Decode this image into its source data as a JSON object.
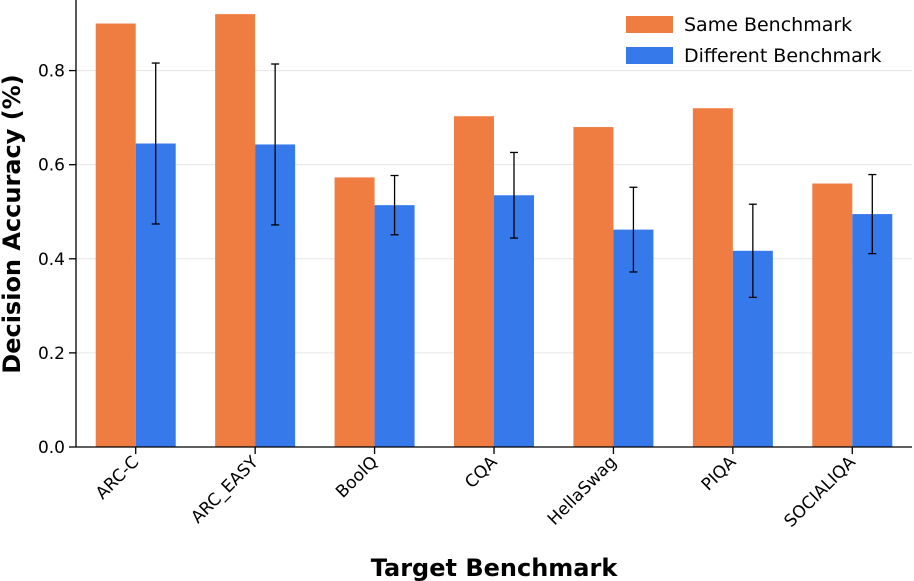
{
  "chart_data": {
    "type": "bar",
    "title": "",
    "xlabel": "Target Benchmark",
    "ylabel": "Decision Accuracy (%)",
    "ylim": [
      0,
      0.95
    ],
    "yticks": [
      0.0,
      0.2,
      0.4,
      0.6,
      0.8
    ],
    "ytick_labels": [
      "0.0",
      "0.2",
      "0.4",
      "0.6",
      "0.8"
    ],
    "grid": "horizontal",
    "legend_position": "top-right",
    "categories": [
      "ARC-C",
      "ARC_EASY",
      "BoolQ",
      "CQA",
      "HellaSwag",
      "PIQA",
      "SOCIALIQA"
    ],
    "series": [
      {
        "name": "Same Benchmark",
        "color": "#ef7d42",
        "values": [
          0.9,
          0.92,
          0.573,
          0.703,
          0.68,
          0.72,
          0.56
        ]
      },
      {
        "name": "Different Benchmark",
        "color": "#3579eb",
        "values": [
          0.645,
          0.643,
          0.514,
          0.535,
          0.462,
          0.417,
          0.495
        ],
        "error": [
          0.171,
          0.171,
          0.063,
          0.091,
          0.09,
          0.099,
          0.084
        ]
      }
    ]
  }
}
